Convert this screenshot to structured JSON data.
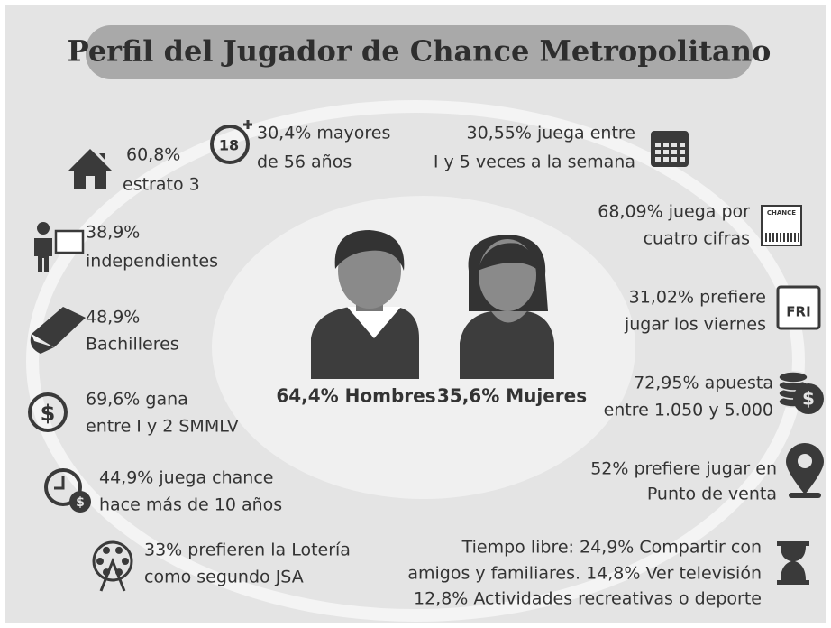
{
  "title": "Perfil del Jugador de Chance Metropolitano",
  "center": {
    "men": "64,4% Hombres",
    "women": "35,6% Mujeres"
  },
  "items": [
    {
      "lines": [
        "60,8%",
        "estrato 3"
      ]
    },
    {
      "lines": [
        "30,4% mayores",
        "de 56 años"
      ],
      "icon_text": "18"
    },
    {
      "lines": [
        "30,55% juega entre",
        "I y 5 veces a la semana"
      ]
    },
    {
      "lines": [
        "68,09%  juega por",
        "cuatro cifras"
      ],
      "icon_text": "CHANCE"
    },
    {
      "lines": [
        "31,02% prefiere",
        "jugar los viernes"
      ],
      "icon_text": "FRI"
    },
    {
      "lines": [
        "72,95% apuesta",
        "entre 1.050 y 5.000"
      ],
      "icon_text": "$"
    },
    {
      "lines": [
        "52% prefiere jugar en",
        "Punto de venta"
      ]
    },
    {
      "lines": [
        "Tiempo libre: 24,9% Compartir con",
        "amigos y familiares. 14,8% Ver televisión",
        "12,8% Actividades recreativas o deporte"
      ]
    },
    {
      "lines": [
        "38,9%",
        "independientes"
      ]
    },
    {
      "lines": [
        "48,9%",
        "Bachilleres"
      ]
    },
    {
      "lines": [
        "69,6% gana",
        "entre I y 2 SMMLV"
      ],
      "icon_text": "$"
    },
    {
      "lines": [
        "44,9% juega chance",
        "hace más de 10 años"
      ],
      "icon_text": "$"
    },
    {
      "lines": [
        "33% prefieren la Lotería",
        "como segundo JSA"
      ]
    }
  ]
}
